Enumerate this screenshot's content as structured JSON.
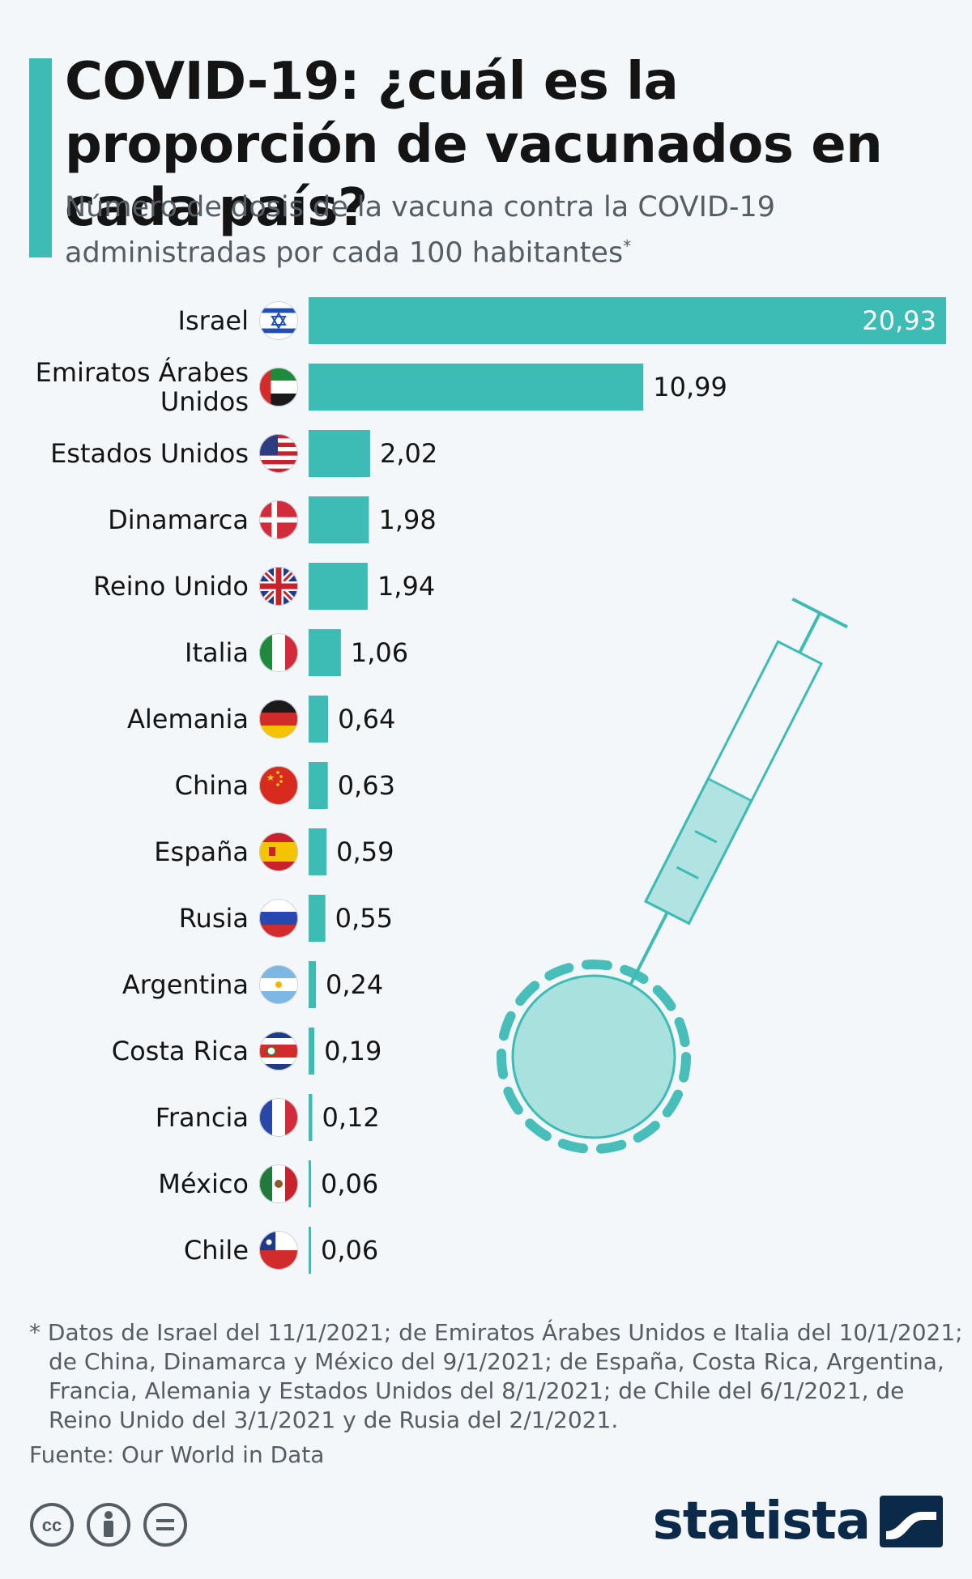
{
  "header": {
    "title": "COVID-19: ¿cuál es la proporción de vacunados en cada país?",
    "subtitle": "Número de dosis de la vacuna contra la COVID-19 administradas por cada 100 habitantes",
    "subtitle_marker": "*"
  },
  "chart_data": {
    "type": "bar",
    "orientation": "horizontal",
    "title": "COVID-19: ¿cuál es la proporción de vacunados en cada país?",
    "subtitle": "Número de dosis de la vacuna contra la COVID-19 administradas por cada 100 habitantes",
    "categories": [
      "Israel",
      "Emiratos Árabes Unidos",
      "Estados Unidos",
      "Dinamarca",
      "Reino Unido",
      "Italia",
      "Alemania",
      "China",
      "España",
      "Rusia",
      "Argentina",
      "Costa Rica",
      "Francia",
      "México",
      "Chile"
    ],
    "category_lines": [
      [
        "Israel"
      ],
      [
        "Emiratos Árabes",
        "Unidos"
      ],
      [
        "Estados Unidos"
      ],
      [
        "Dinamarca"
      ],
      [
        "Reino Unido"
      ],
      [
        "Italia"
      ],
      [
        "Alemania"
      ],
      [
        "China"
      ],
      [
        "España"
      ],
      [
        "Rusia"
      ],
      [
        "Argentina"
      ],
      [
        "Costa Rica"
      ],
      [
        "Francia"
      ],
      [
        "México"
      ],
      [
        "Chile"
      ]
    ],
    "values": [
      20.93,
      10.99,
      2.02,
      1.98,
      1.94,
      1.06,
      0.64,
      0.63,
      0.59,
      0.55,
      0.24,
      0.19,
      0.12,
      0.06,
      0.06
    ],
    "value_labels": [
      "20,93",
      "10,99",
      "2,02",
      "1,98",
      "1,94",
      "1,06",
      "0,64",
      "0,63",
      "0,59",
      "0,55",
      "0,24",
      "0,19",
      "0,12",
      "0,06",
      "0,06"
    ],
    "flags": [
      "israel-flag-icon",
      "uae-flag-icon",
      "usa-flag-icon",
      "denmark-flag-icon",
      "uk-flag-icon",
      "italy-flag-icon",
      "germany-flag-icon",
      "china-flag-icon",
      "spain-flag-icon",
      "russia-flag-icon",
      "argentina-flag-icon",
      "costa-rica-flag-icon",
      "france-flag-icon",
      "mexico-flag-icon",
      "chile-flag-icon"
    ],
    "xlim": [
      0,
      20.93
    ],
    "xlabel": "",
    "ylabel": "",
    "grid": false,
    "bar_color": "#3dbbb5",
    "decoration": "syringe-illustration"
  },
  "footer": {
    "footnote": "* Datos de Israel del 11/1/2021; de Emiratos Árabes Unidos e Italia del 10/1/2021; de China, Dinamarca y México del 9/1/2021; de España, Costa Rica, Argentina, Francia, Alemania y Estados Unidos del 8/1/2021; de Chile del 6/1/2021, de Reino Unido del 3/1/2021 y de Rusia del 2/1/2021.",
    "source": "Fuente: Our World in Data",
    "brand": "statista",
    "license_icons": [
      "cc-icon",
      "attribution-icon",
      "no-derivatives-icon"
    ]
  }
}
